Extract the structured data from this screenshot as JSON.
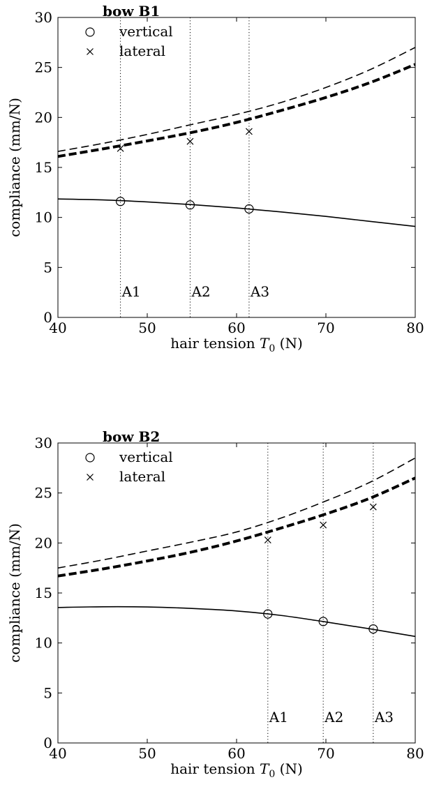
{
  "chart_data": [
    {
      "type": "line",
      "title": "bow B1",
      "xlabel": "hair tension",
      "xlabel_symbol": "T",
      "xlabel_sub": "0",
      "xlabel_unit": " (N)",
      "ylabel": "compliance (mm/N)",
      "xlim": [
        40,
        80
      ],
      "ylim": [
        0,
        30
      ],
      "xticks": [
        40,
        50,
        60,
        70,
        80
      ],
      "yticks": [
        0,
        5,
        10,
        15,
        20,
        25,
        30
      ],
      "legend": {
        "position": "top-left",
        "entries": [
          {
            "label": "vertical",
            "marker": "circle"
          },
          {
            "label": "lateral",
            "marker": "cross"
          }
        ]
      },
      "series": [
        {
          "style": "solid",
          "x": [
            40,
            45,
            50,
            55,
            60,
            65,
            70,
            75,
            80
          ],
          "y": [
            11.85,
            11.75,
            11.55,
            11.28,
            10.95,
            10.55,
            10.1,
            9.6,
            9.1
          ]
        },
        {
          "style": "thin-dashed",
          "x": [
            40,
            45,
            50,
            55,
            60,
            65,
            70,
            75,
            80
          ],
          "y": [
            16.6,
            17.4,
            18.3,
            19.3,
            20.3,
            21.5,
            23.0,
            24.8,
            27.0
          ]
        },
        {
          "style": "thick-dashed",
          "x": [
            40,
            45,
            50,
            55,
            60,
            65,
            70,
            75,
            80
          ],
          "y": [
            16.1,
            16.85,
            17.65,
            18.5,
            19.5,
            20.7,
            22.0,
            23.5,
            25.3
          ]
        }
      ],
      "markers": {
        "vertical": [
          {
            "x": 47.0,
            "y": 11.6
          },
          {
            "x": 54.8,
            "y": 11.25
          },
          {
            "x": 61.4,
            "y": 10.85
          }
        ],
        "lateral": [
          {
            "x": 47.0,
            "y": 16.9
          },
          {
            "x": 54.8,
            "y": 17.6
          },
          {
            "x": 61.4,
            "y": 18.6
          }
        ]
      },
      "annotations": [
        {
          "label": "A1",
          "x": 47.0
        },
        {
          "label": "A2",
          "x": 54.8
        },
        {
          "label": "A3",
          "x": 61.4
        }
      ]
    },
    {
      "type": "line",
      "title": "bow B2",
      "xlabel": "hair tension",
      "xlabel_symbol": "T",
      "xlabel_sub": "0",
      "xlabel_unit": " (N)",
      "ylabel": "compliance (mm/N)",
      "xlim": [
        40,
        80
      ],
      "ylim": [
        0,
        30
      ],
      "xticks": [
        40,
        50,
        60,
        70,
        80
      ],
      "yticks": [
        0,
        5,
        10,
        15,
        20,
        25,
        30
      ],
      "legend": {
        "position": "top-left",
        "entries": [
          {
            "label": "vertical",
            "marker": "circle"
          },
          {
            "label": "lateral",
            "marker": "cross"
          }
        ]
      },
      "series": [
        {
          "style": "solid",
          "x": [
            40,
            45,
            50,
            55,
            60,
            65,
            70,
            75,
            80
          ],
          "y": [
            13.55,
            13.62,
            13.6,
            13.45,
            13.2,
            12.75,
            12.1,
            11.4,
            10.65
          ]
        },
        {
          "style": "thin-dashed",
          "x": [
            40,
            45,
            50,
            55,
            60,
            65,
            70,
            75,
            80
          ],
          "y": [
            17.5,
            18.3,
            19.2,
            20.1,
            21.1,
            22.5,
            24.2,
            26.1,
            28.5
          ]
        },
        {
          "style": "thick-dashed",
          "x": [
            40,
            45,
            50,
            55,
            60,
            65,
            70,
            75,
            80
          ],
          "y": [
            16.7,
            17.4,
            18.2,
            19.1,
            20.2,
            21.5,
            22.9,
            24.5,
            26.5
          ]
        }
      ],
      "markers": {
        "vertical": [
          {
            "x": 63.5,
            "y": 12.9
          },
          {
            "x": 69.7,
            "y": 12.15
          },
          {
            "x": 75.3,
            "y": 11.4
          }
        ],
        "lateral": [
          {
            "x": 63.5,
            "y": 20.3
          },
          {
            "x": 69.7,
            "y": 21.8
          },
          {
            "x": 75.3,
            "y": 23.6
          }
        ]
      },
      "annotations": [
        {
          "label": "A1",
          "x": 63.5
        },
        {
          "label": "A2",
          "x": 69.7
        },
        {
          "label": "A3",
          "x": 75.3
        }
      ]
    }
  ]
}
